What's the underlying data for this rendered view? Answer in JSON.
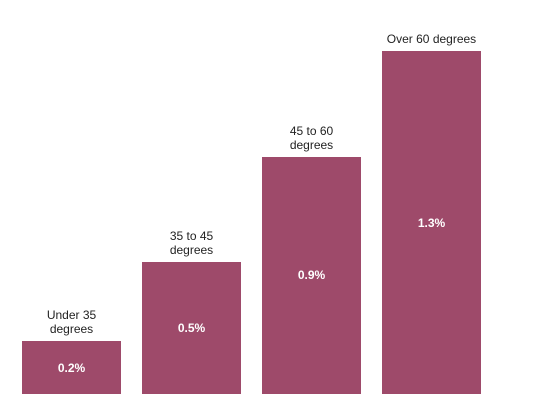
{
  "chart_data": {
    "type": "bar",
    "categories": [
      "Under 35\ndegrees",
      "35 to 45\ndegrees",
      "45 to 60\ndegrees",
      "Over 60 degrees"
    ],
    "values": [
      0.2,
      0.5,
      0.9,
      1.3
    ],
    "value_labels": [
      "0.2%",
      "0.5%",
      "0.9%",
      "1.3%"
    ],
    "color": "#9e4a6a"
  }
}
